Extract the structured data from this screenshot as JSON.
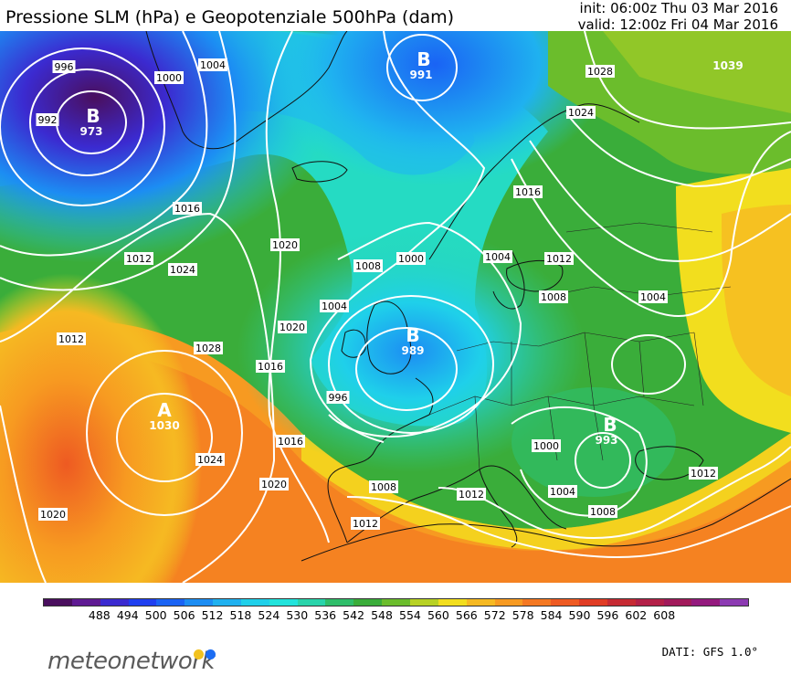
{
  "header": {
    "title": "Pressione SLM (hPa) e Geopotenziale 500hPa (dam)",
    "init": "init: 06:00z Thu 03 Mar 2016",
    "valid": "valid: 12:00z Fri 04 Mar 2016"
  },
  "colorbar": {
    "ticks": [
      "488",
      "494",
      "500",
      "506",
      "512",
      "518",
      "524",
      "530",
      "536",
      "542",
      "548",
      "554",
      "560",
      "566",
      "572",
      "578",
      "584",
      "590",
      "596",
      "602",
      "608"
    ],
    "colors": [
      "#4a0f5e",
      "#5f1a93",
      "#3b2ad0",
      "#1f3ff0",
      "#1a63f4",
      "#1c8df3",
      "#1fb1f0",
      "#1fd0ea",
      "#22e3dc",
      "#29d4ab",
      "#2fbe6a",
      "#3aad3a",
      "#6bbd2c",
      "#b7d124",
      "#f2de1e",
      "#f6b922",
      "#f79a21",
      "#f47822",
      "#ee5a22",
      "#e03c24",
      "#c62a33",
      "#b32048",
      "#a11a5b",
      "#941a7e",
      "#8c3ab2"
    ]
  },
  "map": {
    "centers": [
      {
        "letter": "B",
        "value": "973"
      },
      {
        "letter": "B",
        "value": "991"
      },
      {
        "letter": "B",
        "value": "989"
      },
      {
        "letter": "B",
        "value": "993"
      },
      {
        "letter": "A",
        "value": "1030"
      },
      {
        "letter": "",
        "value": "1039"
      }
    ],
    "isobar_labels": [
      "996",
      "992",
      "1000",
      "1004",
      "1016",
      "1012",
      "1024",
      "1020",
      "1028",
      "1016",
      "1020",
      "1024",
      "1020",
      "1012",
      "1008",
      "1004",
      "1000",
      "996",
      "1016",
      "1008",
      "1012",
      "1012",
      "1020",
      "1016",
      "1004",
      "1012",
      "1008",
      "1004",
      "1000",
      "1004",
      "1008",
      "1012",
      "1028",
      "1024"
    ]
  },
  "footer": {
    "logo": "meteonetwork",
    "source": "DATI: GFS 1.0°"
  }
}
